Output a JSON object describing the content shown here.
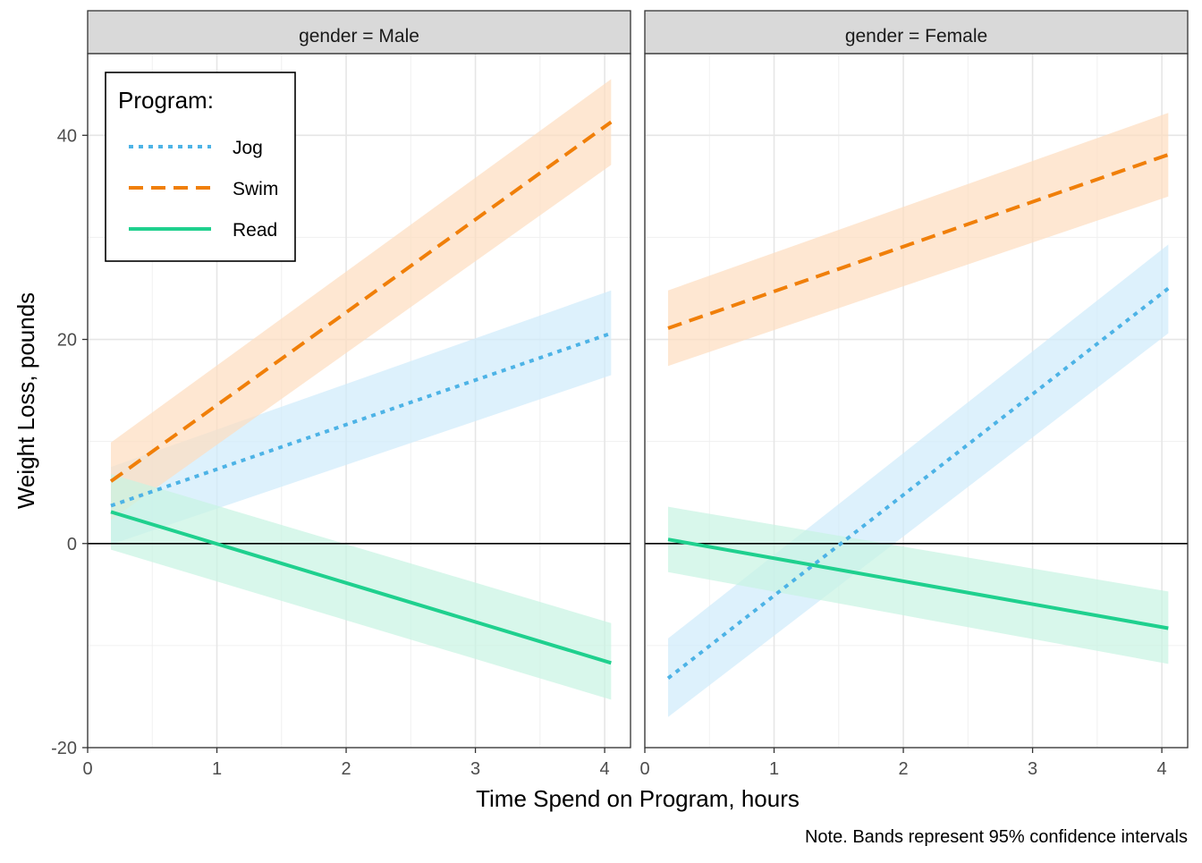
{
  "chart_data": {
    "type": "line",
    "xlabel": "Time Spend on Program, hours",
    "ylabel": "Weight Loss, pounds",
    "caption": "Note. Bands represent 95% confidence intervals",
    "xlim": [
      0,
      4.2
    ],
    "ylim": [
      -20,
      48
    ],
    "x_ticks": [
      0,
      1,
      2,
      3,
      4
    ],
    "y_ticks": [
      -20,
      0,
      20,
      40
    ],
    "grid": true,
    "hline": 0,
    "legend": {
      "title": "Program:",
      "placement": "top-left",
      "entries": [
        {
          "label": "Jog",
          "color": "#4DB3E6",
          "dash": "dotted"
        },
        {
          "label": "Swim",
          "color": "#F07F09",
          "dash": "dashed"
        },
        {
          "label": "Read",
          "color": "#1FD08E",
          "dash": "solid"
        }
      ]
    },
    "series_colors": {
      "Jog": "#4DB3E6",
      "Swim": "#F07F09",
      "Read": "#1FD08E"
    },
    "band_colors": {
      "Jog": "#CFEBFB",
      "Swim": "#FDDDBF",
      "Read": "#C8F3E3"
    },
    "panels": [
      {
        "strip_label": "gender = Male",
        "series": [
          {
            "name": "Jog",
            "x": [
              0.18,
              4.05
            ],
            "y": [
              3.7,
              20.6
            ],
            "lower": [
              -0.1,
              16.5
            ],
            "upper": [
              7.5,
              24.8
            ]
          },
          {
            "name": "Swim",
            "x": [
              0.18,
              4.05
            ],
            "y": [
              6.1,
              41.3
            ],
            "lower": [
              2.3,
              37.1
            ],
            "upper": [
              9.9,
              45.5
            ]
          },
          {
            "name": "Read",
            "x": [
              0.18,
              4.05
            ],
            "y": [
              3.1,
              -11.7
            ],
            "lower": [
              -0.6,
              -15.3
            ],
            "upper": [
              6.8,
              -7.8
            ]
          }
        ]
      },
      {
        "strip_label": "gender = Female",
        "series": [
          {
            "name": "Jog",
            "x": [
              0.18,
              4.05
            ],
            "y": [
              -13.2,
              25.0
            ],
            "lower": [
              -17.0,
              20.6
            ],
            "upper": [
              -9.3,
              29.3
            ]
          },
          {
            "name": "Swim",
            "x": [
              0.18,
              4.05
            ],
            "y": [
              21.1,
              38.1
            ],
            "lower": [
              17.4,
              34.0
            ],
            "upper": [
              24.8,
              42.2
            ]
          },
          {
            "name": "Read",
            "x": [
              0.18,
              4.05
            ],
            "y": [
              0.4,
              -8.3
            ],
            "lower": [
              -2.8,
              -11.8
            ],
            "upper": [
              3.6,
              -4.7
            ]
          }
        ]
      }
    ]
  }
}
